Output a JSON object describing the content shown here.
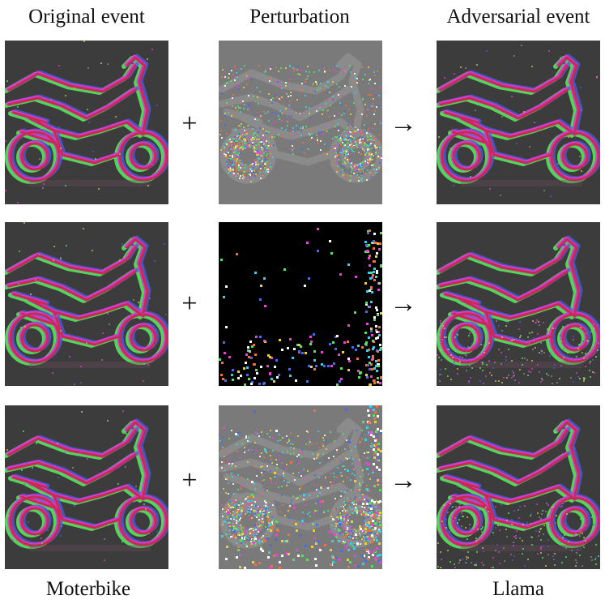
{
  "headers": {
    "original": "Original event",
    "perturbation": "Perturbation",
    "adversarial": "Adversarial event"
  },
  "operators": {
    "plus": "+",
    "arrow": "→"
  },
  "footers": {
    "true_label": "Moterbike",
    "adversarial_label": "Llama"
  },
  "rows": [
    {
      "perturbation_style": "dense-gray"
    },
    {
      "perturbation_style": "sparse-black"
    },
    {
      "perturbation_style": "dense-gray-plus-sparse"
    }
  ],
  "colors": {
    "event_background": "#3c3c3c",
    "perturbation_gray": "#7a7a7a",
    "perturbation_black": "#000000",
    "magenta": "#d83cd0",
    "green": "#54e85a",
    "red": "#c8284a",
    "blue": "#4a5ad8"
  }
}
